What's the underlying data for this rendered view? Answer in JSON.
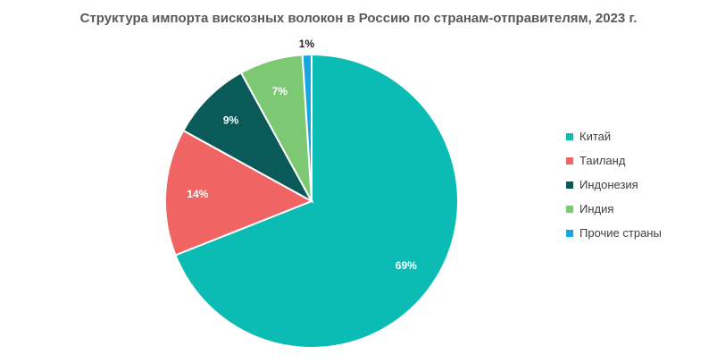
{
  "chart_data": {
    "type": "pie",
    "title": "Структура импорта вискозных волокон в Россию по странам-отправителям, 2023 г.",
    "categories": [
      "Китай",
      "Таиланд",
      "Индонезия",
      "Индия",
      "Прочие  страны"
    ],
    "values": [
      69,
      14,
      9,
      7,
      1
    ],
    "data_labels": [
      "69%",
      "14%",
      "9%",
      "7%",
      "1%"
    ],
    "colors": [
      "#0BBCB5",
      "#F06464",
      "#0B5A5A",
      "#7CC873",
      "#13A8E0"
    ],
    "label_colors": [
      "#ffffff",
      "#ffffff",
      "#ffffff",
      "#ffffff",
      "#262626"
    ],
    "unit": "%",
    "legend_position": "right",
    "start_angle_deg": 0,
    "direction": "clockwise"
  }
}
